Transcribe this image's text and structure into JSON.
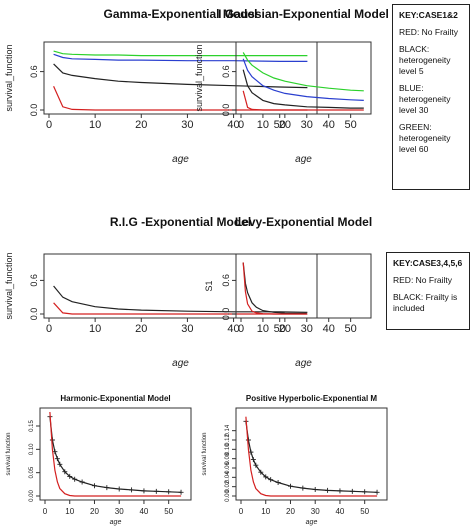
{
  "chart_data": [
    {
      "type": "line",
      "title": "Gamma-Exponential Model",
      "xlabel": "age",
      "ylabel": "survival_function",
      "xlim": [
        0,
        57
      ],
      "ylim": [
        0,
        1.0
      ],
      "xticks": [
        "0",
        "10",
        "20",
        "30",
        "40",
        "50"
      ],
      "yticks": [
        "0.0",
        "0.6"
      ],
      "x": [
        1,
        3,
        5,
        10,
        15,
        20,
        30,
        40,
        50,
        56
      ],
      "series": [
        {
          "color": "#2cd12c",
          "values": [
            0.92,
            0.88,
            0.87,
            0.86,
            0.86,
            0.85,
            0.85,
            0.85,
            0.85,
            0.85
          ]
        },
        {
          "color": "#2a3fcf",
          "values": [
            0.87,
            0.82,
            0.8,
            0.79,
            0.78,
            0.78,
            0.77,
            0.77,
            0.76,
            0.76
          ]
        },
        {
          "color": "#222222",
          "values": [
            0.72,
            0.58,
            0.54,
            0.49,
            0.45,
            0.43,
            0.4,
            0.38,
            0.36,
            0.35
          ]
        },
        {
          "color": "#d42020",
          "values": [
            0.37,
            0.05,
            0.01,
            0.0,
            0.0,
            0.0,
            0.0,
            0.0,
            0.0,
            0.0
          ]
        }
      ]
    },
    {
      "type": "line",
      "title": "I Gaussian-Exponential Model",
      "xlabel": "age",
      "ylabel": "survival_function",
      "xlim": [
        0,
        57
      ],
      "ylim": [
        0,
        1.0
      ],
      "xticks": [
        "0",
        "10",
        "20",
        "30",
        "40",
        "50"
      ],
      "yticks": [
        "0.0",
        "0.6"
      ],
      "x": [
        1,
        3,
        5,
        10,
        15,
        20,
        30,
        40,
        50,
        56
      ],
      "series": [
        {
          "color": "#2cd12c",
          "values": [
            0.9,
            0.78,
            0.7,
            0.58,
            0.5,
            0.45,
            0.38,
            0.34,
            0.31,
            0.3
          ]
        },
        {
          "color": "#2a3fcf",
          "values": [
            0.8,
            0.62,
            0.52,
            0.38,
            0.31,
            0.26,
            0.21,
            0.18,
            0.16,
            0.15
          ]
        },
        {
          "color": "#222222",
          "values": [
            0.63,
            0.38,
            0.27,
            0.15,
            0.1,
            0.08,
            0.05,
            0.04,
            0.03,
            0.03
          ]
        },
        {
          "color": "#d42020",
          "values": [
            0.3,
            0.04,
            0.01,
            0.0,
            0.0,
            0.0,
            0.0,
            0.0,
            0.0,
            0.0
          ]
        }
      ]
    },
    {
      "type": "line",
      "title": "R.I.G -Exponential Model",
      "xlabel": "age",
      "ylabel": "survival_function",
      "xlim": [
        0,
        57
      ],
      "ylim": [
        0,
        1.0
      ],
      "xticks": [
        "0",
        "10",
        "20",
        "30",
        "40",
        "50"
      ],
      "yticks": [
        "0.0",
        "0.6"
      ],
      "x": [
        1,
        3,
        5,
        10,
        15,
        20,
        30,
        40,
        50,
        56
      ],
      "series": [
        {
          "color": "#222222",
          "values": [
            0.5,
            0.3,
            0.22,
            0.13,
            0.09,
            0.07,
            0.05,
            0.04,
            0.04,
            0.03
          ]
        },
        {
          "color": "#d42020",
          "values": [
            0.2,
            0.02,
            0.0,
            0.0,
            0.0,
            0.0,
            0.0,
            0.0,
            0.0,
            0.0
          ]
        }
      ]
    },
    {
      "type": "line",
      "title": "Levy-Exponential Model",
      "xlabel": "age",
      "ylabel": "S1",
      "xlim": [
        0,
        57
      ],
      "ylim": [
        0,
        1.0
      ],
      "xticks": [
        "0",
        "10",
        "20",
        "30",
        "40",
        "50"
      ],
      "yticks": [
        "0.0",
        "0.6"
      ],
      "x": [
        1,
        2,
        3,
        5,
        7,
        10,
        15,
        20,
        25,
        30
      ],
      "series": [
        {
          "color": "#222222",
          "values": [
            0.92,
            0.55,
            0.38,
            0.2,
            0.12,
            0.06,
            0.03,
            0.015,
            0.01,
            0.01
          ]
        },
        {
          "color": "#d42020",
          "values": [
            0.92,
            0.4,
            0.18,
            0.05,
            0.02,
            0.005,
            0.0,
            0.0,
            0.0,
            0.0
          ]
        }
      ]
    },
    {
      "type": "line",
      "title": "Harmonic-Exponential Model",
      "xlabel": "age",
      "ylabel": "survival function",
      "xlim": [
        0,
        57
      ],
      "ylim": [
        0,
        0.18
      ],
      "xticks": [
        "0",
        "10",
        "20",
        "30",
        "40",
        "50"
      ],
      "yticks": [
        "0.00",
        "0.05",
        "0.10",
        "0.15"
      ],
      "x": [
        2,
        3,
        4,
        5,
        6,
        8,
        10,
        12,
        15,
        20,
        25,
        30,
        35,
        40,
        45,
        50,
        55
      ],
      "series": [
        {
          "color": "#222222",
          "marker": "plus",
          "values": [
            0.17,
            0.12,
            0.095,
            0.08,
            0.068,
            0.052,
            0.042,
            0.036,
            0.03,
            0.022,
            0.018,
            0.015,
            0.013,
            0.011,
            0.01,
            0.009,
            0.008
          ]
        },
        {
          "color": "#d42020",
          "values": [
            0.18,
            0.1,
            0.055,
            0.03,
            0.016,
            0.005,
            0.001,
            0.0,
            0.0,
            0.0,
            0.0,
            0.0,
            0.0,
            0.0,
            0.0,
            0.0,
            0.0
          ]
        }
      ]
    },
    {
      "type": "line",
      "title": "Positive Hyperbolic-Exponential M",
      "xlabel": "age",
      "ylabel": "survival function",
      "xlim": [
        0,
        57
      ],
      "ylim": [
        0,
        0.18
      ],
      "xticks": [
        "0",
        "10",
        "20",
        "30",
        "40",
        "50"
      ],
      "yticks": [
        "0.00",
        "0.02",
        "0.04",
        "0.06",
        "0.08",
        "0.10",
        "0.12",
        "0.14"
      ],
      "x": [
        2,
        3,
        4,
        5,
        6,
        8,
        10,
        12,
        15,
        20,
        25,
        30,
        35,
        40,
        45,
        50,
        55
      ],
      "series": [
        {
          "color": "#222222",
          "marker": "plus",
          "values": [
            0.16,
            0.12,
            0.094,
            0.078,
            0.066,
            0.051,
            0.041,
            0.035,
            0.029,
            0.021,
            0.017,
            0.014,
            0.012,
            0.011,
            0.01,
            0.009,
            0.008
          ]
        },
        {
          "color": "#d42020",
          "values": [
            0.17,
            0.1,
            0.055,
            0.03,
            0.016,
            0.005,
            0.001,
            0.0,
            0.0,
            0.0,
            0.0,
            0.0,
            0.0,
            0.0,
            0.0,
            0.0,
            0.0
          ]
        }
      ]
    }
  ],
  "keys": [
    {
      "title": "KEY:CASE1&2",
      "items": [
        "RED: No Frailty",
        "BLACK: heterogeneity level 5",
        "BLUE: heterogeneity level 30",
        "GREEN: heterogeneity level 60"
      ]
    },
    {
      "title": "KEY:CASE3,4,5,6",
      "items": [
        "RED: No Frailty",
        "BLACK: Frailty is included"
      ]
    }
  ]
}
